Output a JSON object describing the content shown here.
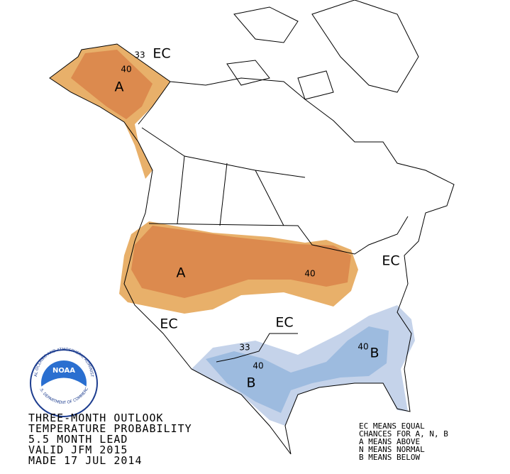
{
  "map": {
    "labels": [
      {
        "text": "33"
      },
      {
        "text": "EC"
      },
      {
        "text": "40"
      },
      {
        "text": "A"
      },
      {
        "text": "A"
      },
      {
        "text": "40"
      },
      {
        "text": "EC"
      },
      {
        "text": "EC"
      },
      {
        "text": "EC"
      },
      {
        "text": "33"
      },
      {
        "text": "40"
      },
      {
        "text": "B"
      },
      {
        "text": "40"
      },
      {
        "text": "B"
      }
    ],
    "caption": [
      "THREE-MONTH OUTLOOK",
      "TEMPERATURE PROBABILITY",
      "5.5 MONTH LEAD",
      "VALID JFM 2015",
      "MADE 17 JUL 2014"
    ],
    "legend": [
      "EC MEANS EQUAL",
      "CHANCES FOR A, N, B",
      "A MEANS ABOVE",
      "N MEANS NORMAL",
      "B MEANS BELOW"
    ],
    "logo": {
      "name": "NOAA",
      "ring_top": "NATIONAL OCEANIC AND ATMOSPHERIC ADMINISTRATION",
      "ring_bottom": "U.S. DEPARTMENT OF COMMERCE"
    }
  }
}
